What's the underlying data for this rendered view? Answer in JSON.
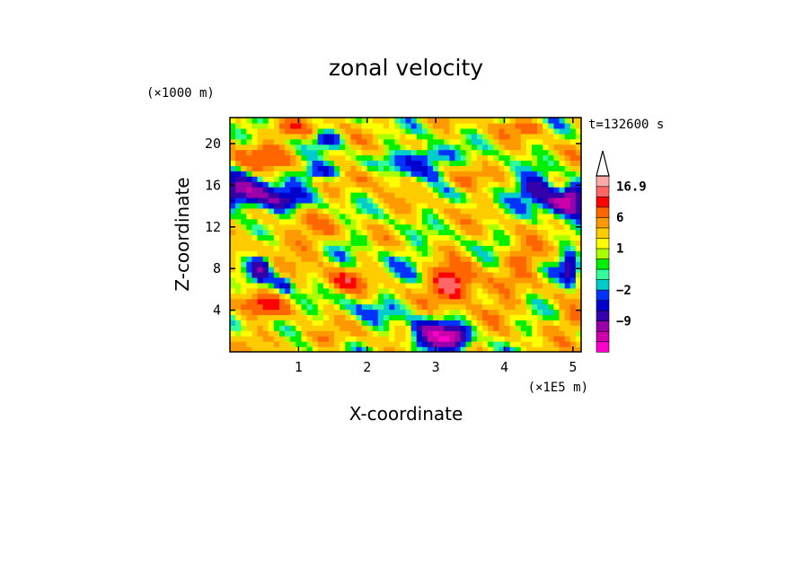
{
  "chart_data": {
    "type": "heatmap",
    "title": "zonal velocity",
    "xlabel": "X-coordinate",
    "ylabel": "Z-coordinate",
    "x_unit_label": "(×1E5 m)",
    "y_unit_label": "(×1000 m)",
    "time_label": "t=132600 s",
    "xlim": [
      0,
      5.12
    ],
    "ylim": [
      0,
      22.5
    ],
    "x_ticks": [
      1,
      2,
      3,
      4,
      5
    ],
    "x_tick_labels": [
      "1",
      "2",
      "3",
      "4",
      "5"
    ],
    "y_ticks": [
      4,
      8,
      12,
      16,
      20
    ],
    "y_tick_labels": [
      "4",
      "8",
      "12",
      "16",
      "20"
    ],
    "colorbar": {
      "labels": [
        "16.9",
        "6",
        "1",
        "−2",
        "−9"
      ],
      "label_values": [
        16.9,
        6,
        1,
        -2,
        -9
      ],
      "levels": [
        -16,
        -12,
        -9,
        -6,
        -4,
        -2,
        -1,
        -0.5,
        0.5,
        1,
        2,
        4,
        6,
        9,
        12,
        16.9
      ],
      "colors": [
        "#ff00cc",
        "#cc00aa",
        "#9900aa",
        "#3300aa",
        "#0000cc",
        "#0033ff",
        "#00cccc",
        "#33ff99",
        "#00ee00",
        "#aaff00",
        "#ffff00",
        "#ffcc00",
        "#ff9900",
        "#ff6600",
        "#ff0000",
        "#ff6666",
        "#ffaaaa"
      ],
      "extend": "max"
    },
    "grid": false
  }
}
